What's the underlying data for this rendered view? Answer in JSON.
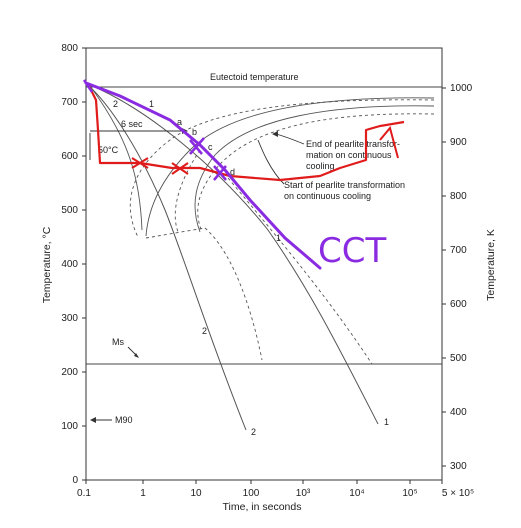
{
  "diagram": {
    "x_axis": {
      "title": "Time, in seconds",
      "ticks": [
        "0.1",
        "1",
        "10",
        "100",
        "10³",
        "10⁴",
        "10⁵",
        "5 × 10⁵"
      ]
    },
    "y_axis_left": {
      "title": "Temperature, °C",
      "ticks": [
        "0",
        "100",
        "200",
        "300",
        "400",
        "500",
        "600",
        "700",
        "800"
      ]
    },
    "y_axis_right": {
      "title": "Temperature, K",
      "ticks": [
        "300",
        "400",
        "500",
        "600",
        "700",
        "800",
        "900",
        "1000"
      ]
    },
    "labels": {
      "eutectoid": "Eutectoid temperature",
      "end_pearlite": "End of pearlite transfor-\nmation on continuous\ncooling",
      "end_pearlite_l1": "End of pearlite transfor-",
      "end_pearlite_l2": "mation on continuous",
      "end_pearlite_l3": "cooling",
      "start_pearlite_l1": "Start of pearlite transformation",
      "start_pearlite_l2": "on continuous cooling",
      "ms": "Ms",
      "m90": "M90",
      "six_sec": "6 sec",
      "fifty_c": "50°C",
      "pt_a": "a",
      "pt_b": "b",
      "pt_c": "c",
      "pt_d": "d",
      "curve1_top": "1",
      "curve2_top": "2",
      "curve1_mid": "1",
      "curve2_mid": "2",
      "curve2_bottom": "2",
      "curve1_bottom": "1",
      "cct": "CCT"
    },
    "colors": {
      "annotation_red": "#e01b1b",
      "annotation_purple": "#8a2be2",
      "ink": "#333333"
    }
  }
}
